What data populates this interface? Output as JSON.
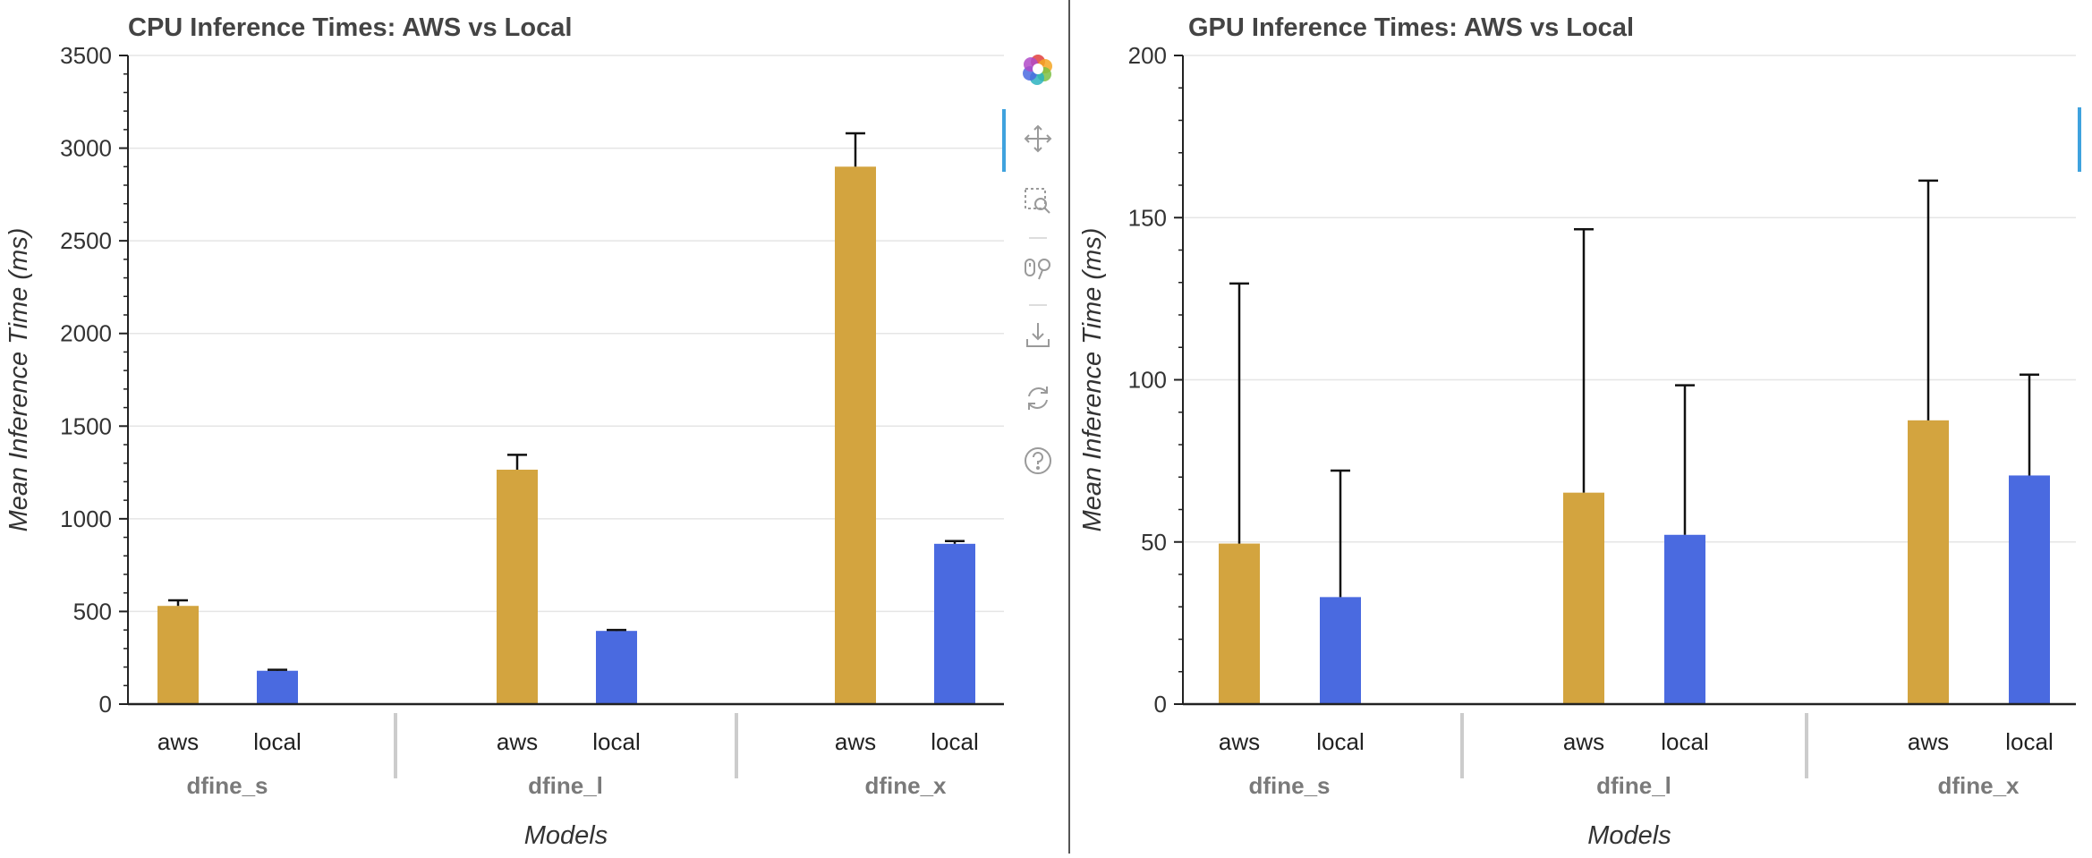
{
  "chart_data": [
    {
      "type": "bar",
      "title": "CPU Inference Times: AWS vs Local",
      "xlabel": "Models",
      "ylabel": "Mean Inference Time (ms)",
      "ylim": [
        0,
        3500
      ],
      "yticks": [
        0,
        500,
        1000,
        1500,
        2000,
        2500,
        3000,
        3500
      ],
      "ytick_labels": [
        "0",
        "500",
        "1000",
        "1500",
        "2000",
        "2500",
        "3000",
        "3500"
      ],
      "groups": [
        "dfine_s",
        "dfine_l",
        "dfine_x"
      ],
      "factors": [
        "aws",
        "local"
      ],
      "bars": [
        {
          "group": "dfine_s",
          "factor": "aws",
          "value": 530,
          "upper": 560
        },
        {
          "group": "dfine_s",
          "factor": "local",
          "value": 180,
          "upper": 185
        },
        {
          "group": "dfine_l",
          "factor": "aws",
          "value": 1265,
          "upper": 1345
        },
        {
          "group": "dfine_l",
          "factor": "local",
          "value": 395,
          "upper": 400
        },
        {
          "group": "dfine_x",
          "factor": "aws",
          "value": 2900,
          "upper": 3080
        },
        {
          "group": "dfine_x",
          "factor": "local",
          "value": 865,
          "upper": 880
        }
      ],
      "colors": {
        "aws": "#d3a43f",
        "local": "#4a6ae0"
      },
      "grid": true
    },
    {
      "type": "bar",
      "title": "GPU Inference Times: AWS vs Local",
      "xlabel": "Models",
      "ylabel": "Mean Inference Time (ms)",
      "ylim": [
        0,
        200
      ],
      "yticks": [
        0,
        50,
        100,
        150,
        200
      ],
      "ytick_labels": [
        "0",
        "50",
        "100",
        "150",
        "200"
      ],
      "groups": [
        "dfine_s",
        "dfine_l",
        "dfine_x"
      ],
      "factors": [
        "aws",
        "local"
      ],
      "bars": [
        {
          "group": "dfine_s",
          "factor": "aws",
          "value": 49.5,
          "upper": 129.7
        },
        {
          "group": "dfine_s",
          "factor": "local",
          "value": 33,
          "upper": 72
        },
        {
          "group": "dfine_l",
          "factor": "aws",
          "value": 65.2,
          "upper": 146.4
        },
        {
          "group": "dfine_l",
          "factor": "local",
          "value": 52.2,
          "upper": 98.3
        },
        {
          "group": "dfine_x",
          "factor": "aws",
          "value": 87.5,
          "upper": 161.4
        },
        {
          "group": "dfine_x",
          "factor": "local",
          "value": 70.5,
          "upper": 101.6
        }
      ],
      "colors": {
        "aws": "#d3a43f",
        "local": "#4a6ae0"
      },
      "grid": true
    }
  ],
  "toolbar": {
    "items": [
      "bokeh-logo-icon",
      "pan-icon",
      "box-zoom-icon",
      "wheel-zoom-icon",
      "save-icon",
      "reset-icon",
      "help-icon"
    ],
    "accent_color": "#3fa2de"
  }
}
